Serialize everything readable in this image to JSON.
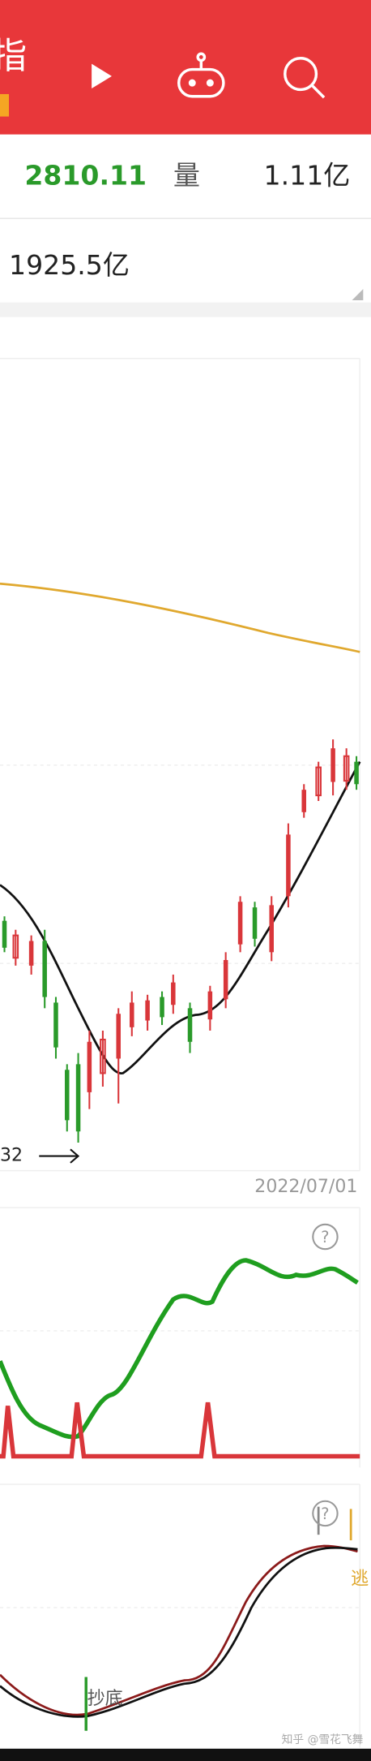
{
  "header": {
    "title": "指"
  },
  "quote": {
    "price": "2810.11",
    "volume_label": "量",
    "volume": "1.11亿",
    "amount": "1925.5亿"
  },
  "main_chart": {
    "low_label": "32",
    "date": "2022/07/01"
  },
  "indicator_2": {
    "help": "?"
  },
  "indicator_3": {
    "help": "?",
    "annotation": "抄底",
    "side_note": "逃"
  },
  "watermark": "知乎 @雪花飞舞"
}
